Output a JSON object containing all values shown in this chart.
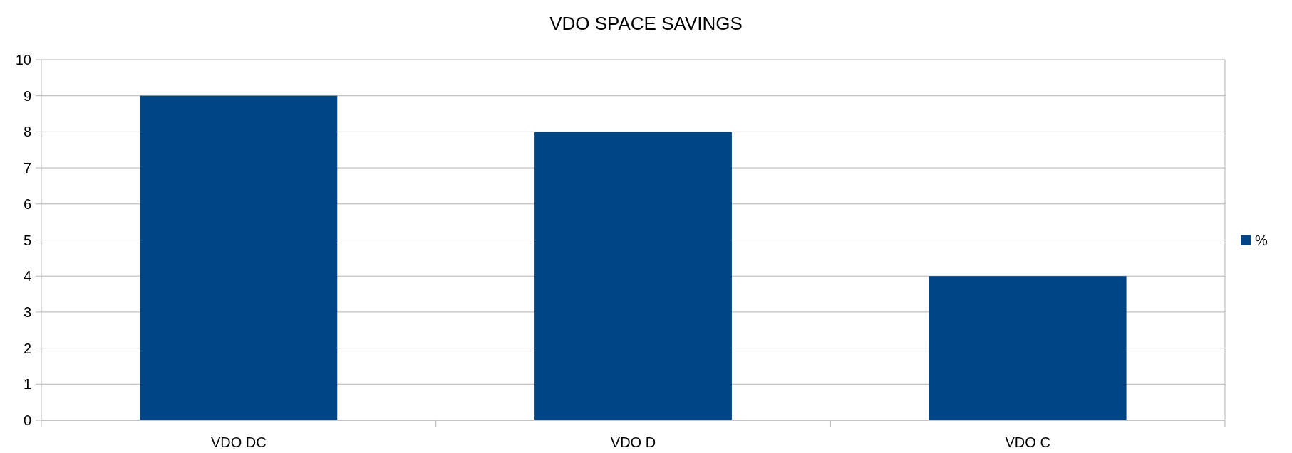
{
  "chart_data": {
    "type": "bar",
    "title": "VDO SPACE SAVINGS",
    "categories": [
      "VDO DC",
      "VDO D",
      "VDO C"
    ],
    "series": [
      {
        "name": "%",
        "color": "#004586",
        "values": [
          9,
          8,
          4
        ]
      }
    ],
    "ylim": [
      0,
      10
    ],
    "yticks": [
      0,
      1,
      2,
      3,
      4,
      5,
      6,
      7,
      8,
      9,
      10
    ],
    "grid": "y",
    "legend": "right"
  }
}
